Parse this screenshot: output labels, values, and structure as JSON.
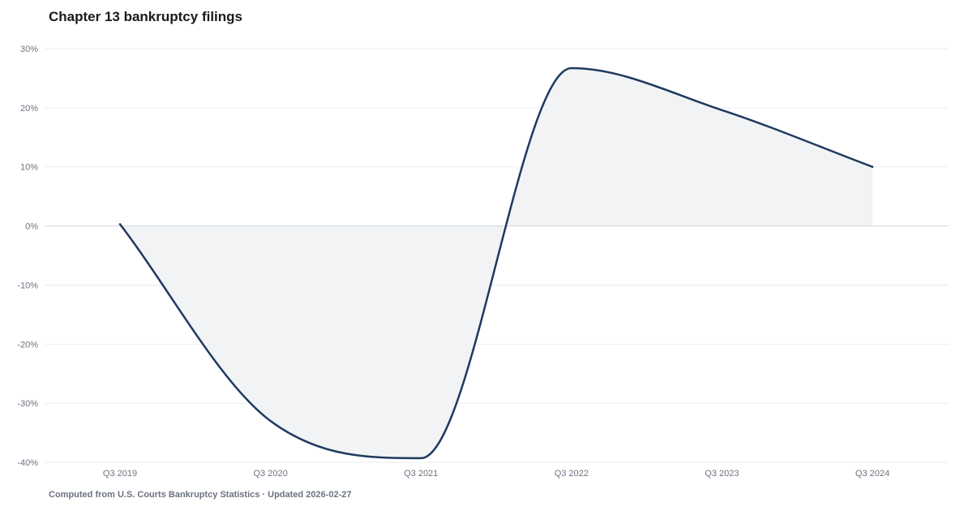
{
  "title": "Chapter 13 bankruptcy filings",
  "footer": "Computed from U.S. Courts Bankruptcy Statistics · Updated 2026-02-27",
  "colors": {
    "line": "#1e3a5f",
    "area": "#f1f3f5",
    "grid": "#e5e7eb",
    "zero": "#d1d5db",
    "text": "#6b7280"
  },
  "chart_data": {
    "type": "area",
    "title": "Chapter 13 bankruptcy filings",
    "xlabel": "",
    "ylabel": "",
    "categories": [
      "Q3 2019",
      "Q3 2020",
      "Q3 2021",
      "Q3 2022",
      "Q3 2023",
      "Q3 2024"
    ],
    "series": [
      {
        "values": [
          0.3,
          -33,
          -39.3,
          26.7,
          19.6,
          10
        ]
      }
    ],
    "ylim": [
      -40,
      30
    ],
    "y_ticks": [
      30,
      20,
      10,
      0,
      -10,
      -20,
      -30,
      -40
    ],
    "y_tick_labels": [
      "30%",
      "20%",
      "10%",
      "0%",
      "-10%",
      "-20%",
      "-30%",
      "-40%"
    ],
    "grid": true,
    "legend": "none"
  }
}
